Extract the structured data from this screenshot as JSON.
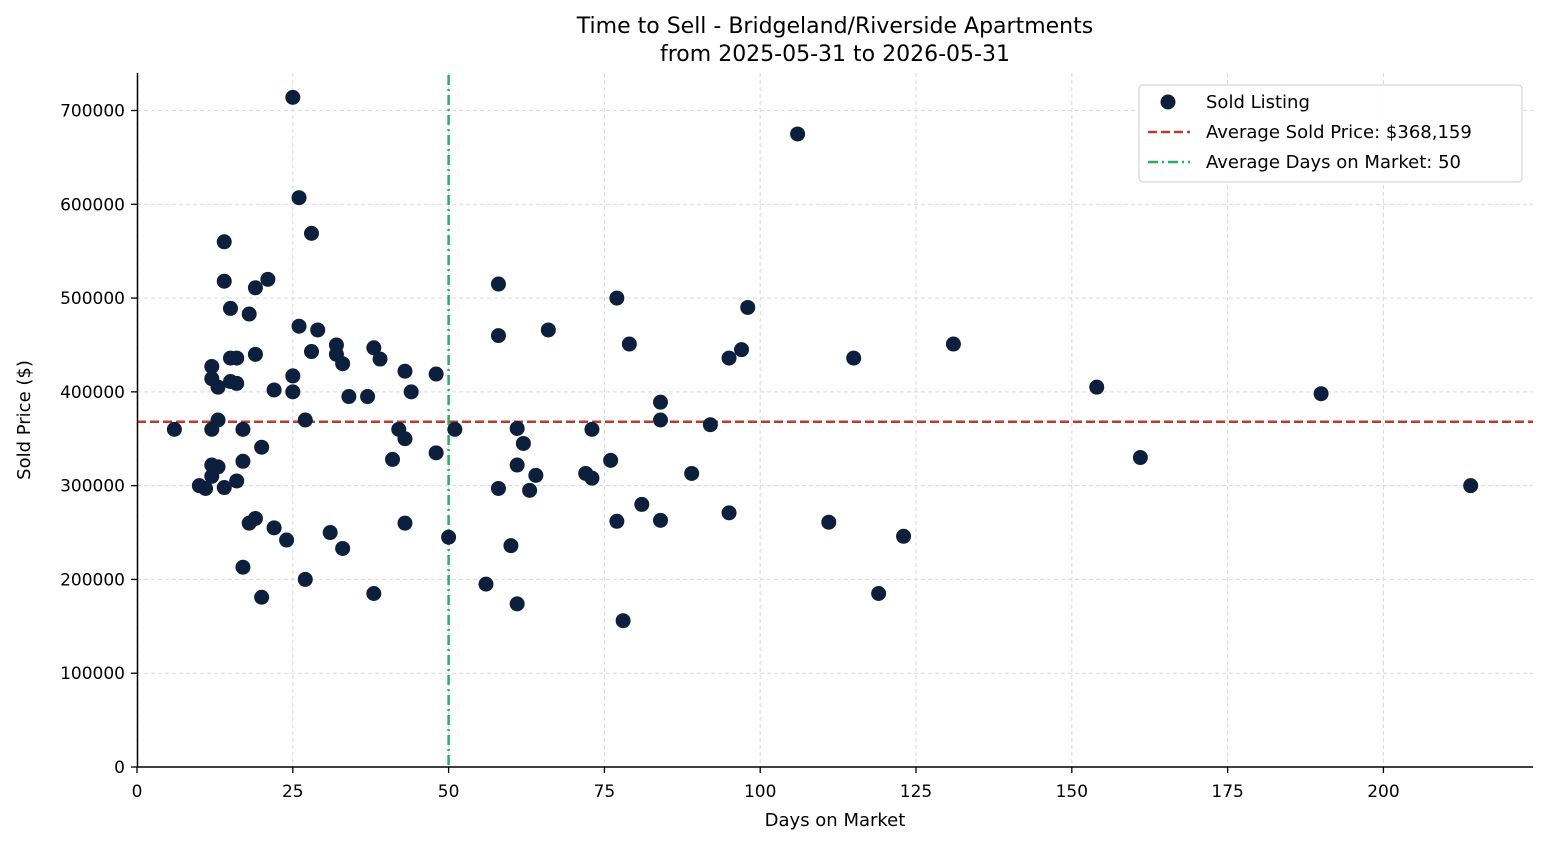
{
  "chart_data": {
    "type": "scatter",
    "title_line1": "Time to Sell - Bridgeland/Riverside Apartments",
    "title_line2": "from 2025-05-31 to 2026-05-31",
    "xlabel": "Days on Market",
    "ylabel": "Sold Price ($)",
    "xlim": [
      0,
      224
    ],
    "ylim": [
      0,
      740000
    ],
    "xticks": [
      0,
      25,
      50,
      75,
      100,
      125,
      150,
      175,
      200
    ],
    "yticks": [
      0,
      100000,
      200000,
      300000,
      400000,
      500000,
      600000,
      700000
    ],
    "grid": true,
    "legend_position": "top-right",
    "legend": {
      "points_label": "Sold Listing",
      "avg_price_label": "Average Sold Price: $368,159",
      "avg_days_label": "Average Days on Market: 50"
    },
    "avg_price": 368159,
    "avg_days": 50,
    "colors": {
      "points": "#0c1f3d",
      "avg_price_line": "#c0392b",
      "avg_days_line": "#27ae60"
    },
    "series": [
      {
        "name": "Sold Listing",
        "points": [
          [
            6,
            360000
          ],
          [
            10,
            300000
          ],
          [
            11,
            297000
          ],
          [
            12,
            427000
          ],
          [
            12,
            414000
          ],
          [
            12,
            360000
          ],
          [
            12,
            322000
          ],
          [
            12,
            310000
          ],
          [
            13,
            405000
          ],
          [
            13,
            370000
          ],
          [
            13,
            320000
          ],
          [
            14,
            560000
          ],
          [
            14,
            518000
          ],
          [
            14,
            298000
          ],
          [
            15,
            489000
          ],
          [
            15,
            436000
          ],
          [
            15,
            411000
          ],
          [
            16,
            436000
          ],
          [
            16,
            409000
          ],
          [
            16,
            305000
          ],
          [
            17,
            360000
          ],
          [
            17,
            326000
          ],
          [
            17,
            213000
          ],
          [
            18,
            483000
          ],
          [
            18,
            260000
          ],
          [
            19,
            511000
          ],
          [
            19,
            440000
          ],
          [
            19,
            265000
          ],
          [
            20,
            341000
          ],
          [
            20,
            181000
          ],
          [
            21,
            520000
          ],
          [
            22,
            402000
          ],
          [
            22,
            255000
          ],
          [
            24,
            242000
          ],
          [
            25,
            714000
          ],
          [
            25,
            417000
          ],
          [
            25,
            400000
          ],
          [
            26,
            607000
          ],
          [
            26,
            470000
          ],
          [
            27,
            370000
          ],
          [
            27,
            200000
          ],
          [
            28,
            569000
          ],
          [
            28,
            443000
          ],
          [
            29,
            466000
          ],
          [
            31,
            250000
          ],
          [
            32,
            450000
          ],
          [
            32,
            440000
          ],
          [
            33,
            430000
          ],
          [
            33,
            233000
          ],
          [
            34,
            395000
          ],
          [
            37,
            395000
          ],
          [
            38,
            447000
          ],
          [
            38,
            185000
          ],
          [
            39,
            435000
          ],
          [
            41,
            328000
          ],
          [
            42,
            360000
          ],
          [
            43,
            422000
          ],
          [
            43,
            350000
          ],
          [
            43,
            260000
          ],
          [
            44,
            400000
          ],
          [
            48,
            419000
          ],
          [
            48,
            335000
          ],
          [
            50,
            245000
          ],
          [
            51,
            360000
          ],
          [
            56,
            195000
          ],
          [
            58,
            515000
          ],
          [
            58,
            460000
          ],
          [
            58,
            297000
          ],
          [
            60,
            236000
          ],
          [
            61,
            361000
          ],
          [
            61,
            322000
          ],
          [
            61,
            174000
          ],
          [
            62,
            345000
          ],
          [
            63,
            295000
          ],
          [
            64,
            311000
          ],
          [
            66,
            466000
          ],
          [
            72,
            313000
          ],
          [
            73,
            360000
          ],
          [
            73,
            308000
          ],
          [
            76,
            327000
          ],
          [
            77,
            500000
          ],
          [
            77,
            262000
          ],
          [
            78,
            156000
          ],
          [
            79,
            451000
          ],
          [
            81,
            280000
          ],
          [
            84,
            389000
          ],
          [
            84,
            370000
          ],
          [
            84,
            263000
          ],
          [
            89,
            313000
          ],
          [
            92,
            365000
          ],
          [
            95,
            436000
          ],
          [
            95,
            271000
          ],
          [
            97,
            445000
          ],
          [
            98,
            490000
          ],
          [
            106,
            675000
          ],
          [
            111,
            261000
          ],
          [
            115,
            436000
          ],
          [
            119,
            185000
          ],
          [
            123,
            246000
          ],
          [
            131,
            451000
          ],
          [
            154,
            405000
          ],
          [
            161,
            330000
          ],
          [
            190,
            398000
          ],
          [
            214,
            300000
          ]
        ]
      }
    ]
  }
}
